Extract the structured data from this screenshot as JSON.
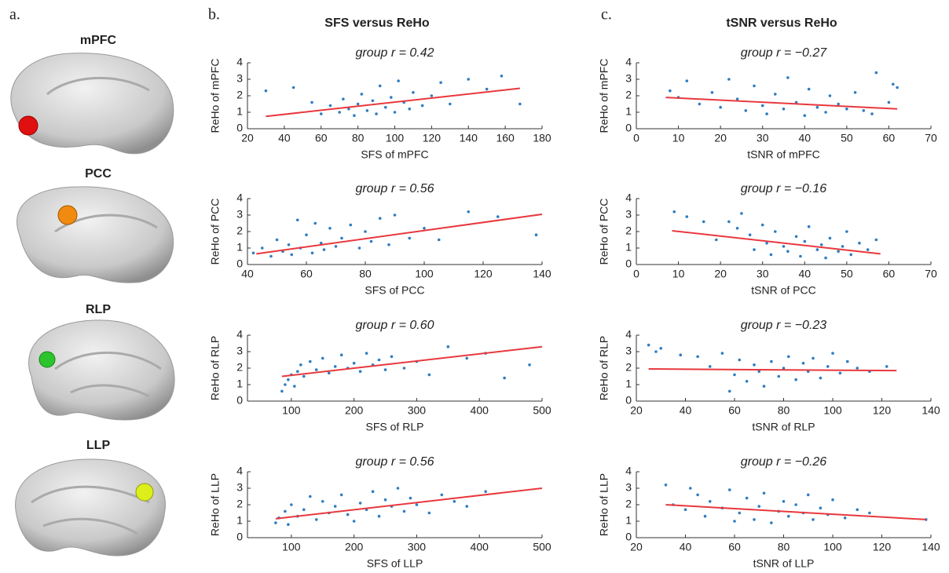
{
  "figure": {
    "panel_labels": [
      "a.",
      "b.",
      "c."
    ],
    "column_titles": [
      "SFS versus ReHo",
      "tSNR versus ReHo"
    ],
    "regions": [
      "mPFC",
      "PCC",
      "RLP",
      "LLP"
    ]
  },
  "chart_data": [
    {
      "type": "scatter",
      "title": "group r = 0.42",
      "xlabel": "SFS of mPFC",
      "ylabel": "ReHo of mPFC",
      "color": "#2f7dc0",
      "xlim": [
        20,
        180
      ],
      "xticks": [
        20,
        40,
        60,
        80,
        100,
        120,
        140,
        160,
        180
      ],
      "ylim": [
        0,
        4
      ],
      "yticks": [
        0,
        1,
        2,
        3,
        4
      ],
      "x": [
        30,
        45,
        55,
        60,
        65,
        70,
        72,
        75,
        78,
        80,
        82,
        85,
        88,
        90,
        92,
        95,
        98,
        100,
        102,
        105,
        108,
        110,
        115,
        120,
        125,
        130,
        140,
        150,
        158,
        168
      ],
      "values": [
        2.3,
        2.5,
        1.6,
        0.9,
        1.4,
        1.0,
        1.8,
        1.2,
        0.8,
        1.5,
        2.1,
        1.1,
        1.7,
        0.9,
        2.6,
        1.3,
        1.9,
        1.0,
        2.9,
        1.6,
        1.2,
        2.2,
        1.4,
        2.0,
        2.8,
        1.5,
        3.0,
        2.4,
        3.2,
        1.5
      ],
      "fit": {
        "color": "#e8383d",
        "x": [
          30,
          168
        ],
        "y": [
          0.75,
          2.45
        ]
      }
    },
    {
      "type": "scatter",
      "title": "group r = 0.56",
      "xlabel": "SFS of PCC",
      "ylabel": "ReHo of PCC",
      "color": "#2f7dc0",
      "xlim": [
        40,
        140
      ],
      "xticks": [
        40,
        60,
        80,
        100,
        120,
        140
      ],
      "ylim": [
        0,
        4
      ],
      "yticks": [
        0,
        1,
        2,
        3,
        4
      ],
      "x": [
        42,
        45,
        48,
        50,
        52,
        54,
        55,
        57,
        58,
        60,
        62,
        63,
        65,
        66,
        68,
        70,
        72,
        75,
        78,
        80,
        82,
        85,
        88,
        90,
        95,
        100,
        105,
        115,
        125,
        138
      ],
      "values": [
        0.7,
        1.0,
        0.5,
        1.5,
        0.8,
        1.2,
        0.6,
        2.7,
        1.0,
        1.8,
        0.7,
        2.5,
        1.3,
        0.9,
        2.2,
        1.1,
        1.6,
        2.4,
        1.0,
        2.0,
        1.4,
        2.8,
        1.2,
        3.0,
        1.6,
        2.2,
        1.5,
        3.2,
        2.9,
        1.8
      ],
      "fit": {
        "color": "#e8383d",
        "x": [
          43,
          140
        ],
        "y": [
          0.65,
          3.05
        ]
      }
    },
    {
      "type": "scatter",
      "title": "group r = 0.60",
      "xlabel": "SFS of RLP",
      "ylabel": "ReHo of RLP",
      "color": "#2f7dc0",
      "xlim": [
        30,
        500
      ],
      "xticks": [
        100,
        200,
        300,
        400,
        500
      ],
      "ylim": [
        0,
        4
      ],
      "yticks": [
        0,
        1,
        2,
        3,
        4
      ],
      "x": [
        85,
        90,
        95,
        100,
        105,
        110,
        115,
        120,
        130,
        140,
        150,
        160,
        170,
        180,
        190,
        200,
        210,
        220,
        230,
        240,
        250,
        260,
        280,
        300,
        320,
        350,
        380,
        410,
        440,
        480
      ],
      "values": [
        0.6,
        1.0,
        1.3,
        1.6,
        0.9,
        1.8,
        2.2,
        1.5,
        2.4,
        1.9,
        2.6,
        1.7,
        2.1,
        2.8,
        2.0,
        2.3,
        1.8,
        2.9,
        2.2,
        2.5,
        1.9,
        2.7,
        2.0,
        2.4,
        1.6,
        3.3,
        2.6,
        2.9,
        1.4,
        2.2
      ],
      "fit": {
        "color": "#e8383d",
        "x": [
          85,
          500
        ],
        "y": [
          1.5,
          3.3
        ]
      }
    },
    {
      "type": "scatter",
      "title": "group r = 0.56",
      "xlabel": "SFS of LLP",
      "ylabel": "ReHo of LLP",
      "color": "#2f7dc0",
      "xlim": [
        30,
        500
      ],
      "xticks": [
        100,
        200,
        300,
        400,
        500
      ],
      "ylim": [
        0,
        4
      ],
      "yticks": [
        0,
        1,
        2,
        3,
        4
      ],
      "x": [
        75,
        80,
        90,
        95,
        100,
        110,
        120,
        130,
        140,
        150,
        160,
        170,
        180,
        190,
        200,
        210,
        220,
        230,
        240,
        250,
        260,
        270,
        280,
        290,
        300,
        320,
        340,
        360,
        380,
        410
      ],
      "values": [
        0.9,
        1.2,
        1.6,
        0.8,
        2.0,
        1.3,
        1.7,
        2.5,
        1.1,
        2.2,
        1.5,
        1.9,
        2.6,
        1.4,
        1.0,
        2.1,
        1.7,
        2.8,
        1.3,
        2.3,
        1.9,
        3.0,
        1.6,
        2.4,
        2.0,
        1.5,
        2.6,
        2.2,
        1.9,
        2.8
      ],
      "fit": {
        "color": "#e8383d",
        "x": [
          75,
          500
        ],
        "y": [
          1.15,
          3.0
        ]
      }
    },
    {
      "type": "scatter",
      "title": "group r = −0.27",
      "xlabel": "tSNR of mPFC",
      "ylabel": "ReHo of mPFC",
      "color": "#2f7dc0",
      "xlim": [
        0,
        70
      ],
      "xticks": [
        0,
        10,
        20,
        30,
        40,
        50,
        60,
        70
      ],
      "ylim": [
        0,
        4
      ],
      "yticks": [
        0,
        1,
        2,
        3,
        4
      ],
      "x": [
        8,
        10,
        12,
        15,
        18,
        20,
        22,
        24,
        26,
        28,
        30,
        31,
        33,
        35,
        36,
        38,
        40,
        41,
        43,
        45,
        46,
        48,
        50,
        52,
        54,
        56,
        57,
        60,
        61,
        62
      ],
      "values": [
        2.3,
        1.9,
        2.9,
        1.5,
        2.2,
        1.3,
        3.0,
        1.8,
        1.1,
        2.6,
        1.4,
        0.9,
        2.1,
        1.2,
        3.1,
        1.6,
        0.8,
        2.4,
        1.3,
        1.0,
        2.0,
        1.5,
        1.2,
        2.2,
        1.1,
        0.9,
        3.4,
        1.6,
        2.7,
        2.5
      ],
      "fit": {
        "color": "#e8383d",
        "x": [
          7,
          62
        ],
        "y": [
          1.9,
          1.2
        ]
      }
    },
    {
      "type": "scatter",
      "title": "group r = −0.16",
      "xlabel": "tSNR of PCC",
      "ylabel": "ReHo of PCC",
      "color": "#2f7dc0",
      "xlim": [
        0,
        70
      ],
      "xticks": [
        0,
        10,
        20,
        30,
        40,
        50,
        60,
        70
      ],
      "ylim": [
        0,
        4
      ],
      "yticks": [
        0,
        1,
        2,
        3,
        4
      ],
      "x": [
        9,
        12,
        16,
        19,
        22,
        24,
        25,
        27,
        28,
        30,
        31,
        32,
        33,
        35,
        36,
        38,
        39,
        40,
        41,
        43,
        44,
        45,
        46,
        48,
        49,
        50,
        51,
        53,
        55,
        57
      ],
      "values": [
        3.2,
        2.9,
        2.6,
        1.5,
        2.6,
        2.2,
        3.1,
        1.8,
        0.9,
        2.4,
        1.3,
        0.6,
        2.0,
        1.1,
        0.8,
        1.7,
        0.5,
        1.4,
        2.3,
        0.9,
        1.2,
        0.4,
        1.6,
        0.8,
        1.1,
        2.0,
        0.6,
        1.3,
        0.9,
        1.5
      ],
      "fit": {
        "color": "#e8383d",
        "x": [
          8.5,
          58
        ],
        "y": [
          2.05,
          0.65
        ]
      }
    },
    {
      "type": "scatter",
      "title": "group r = −0.23",
      "xlabel": "tSNR of RLP",
      "ylabel": "ReHo of RLP",
      "color": "#2f7dc0",
      "xlim": [
        20,
        140
      ],
      "xticks": [
        20,
        40,
        60,
        80,
        100,
        120,
        140
      ],
      "ylim": [
        0,
        4
      ],
      "yticks": [
        0,
        1,
        2,
        3,
        4
      ],
      "x": [
        25,
        28,
        30,
        38,
        45,
        50,
        55,
        58,
        60,
        62,
        65,
        68,
        70,
        72,
        75,
        78,
        80,
        82,
        85,
        88,
        90,
        92,
        95,
        98,
        100,
        103,
        106,
        110,
        115,
        122
      ],
      "values": [
        3.4,
        3.0,
        3.2,
        2.8,
        2.7,
        2.1,
        2.9,
        0.6,
        1.6,
        2.5,
        1.2,
        2.2,
        1.8,
        0.9,
        2.4,
        1.5,
        2.0,
        2.7,
        1.3,
        2.3,
        1.8,
        2.6,
        1.4,
        2.1,
        2.9,
        1.7,
        2.4,
        2.0,
        1.8,
        2.1
      ],
      "fit": {
        "color": "#e8383d",
        "x": [
          25,
          126
        ],
        "y": [
          1.95,
          1.85
        ]
      }
    },
    {
      "type": "scatter",
      "title": "group r = −0.26",
      "xlabel": "tSNR of LLP",
      "ylabel": "ReHo of LLP",
      "color": "#2f7dc0",
      "xlim": [
        20,
        140
      ],
      "xticks": [
        20,
        40,
        60,
        80,
        100,
        120,
        140
      ],
      "ylim": [
        0,
        4
      ],
      "yticks": [
        0,
        1,
        2,
        3,
        4
      ],
      "x": [
        32,
        35,
        40,
        42,
        45,
        48,
        50,
        55,
        58,
        60,
        62,
        65,
        68,
        70,
        72,
        75,
        78,
        80,
        82,
        85,
        88,
        90,
        92,
        95,
        98,
        100,
        105,
        110,
        115,
        138
      ],
      "values": [
        3.2,
        2.0,
        1.7,
        3.0,
        2.6,
        1.3,
        2.2,
        1.8,
        2.9,
        1.0,
        1.5,
        2.4,
        1.1,
        1.9,
        2.7,
        0.9,
        1.6,
        2.2,
        1.3,
        2.0,
        1.5,
        2.6,
        1.1,
        1.8,
        1.4,
        2.3,
        1.2,
        1.7,
        1.5,
        1.1
      ],
      "fit": {
        "color": "#e8383d",
        "x": [
          32,
          138
        ],
        "y": [
          2.0,
          1.1
        ]
      }
    }
  ]
}
